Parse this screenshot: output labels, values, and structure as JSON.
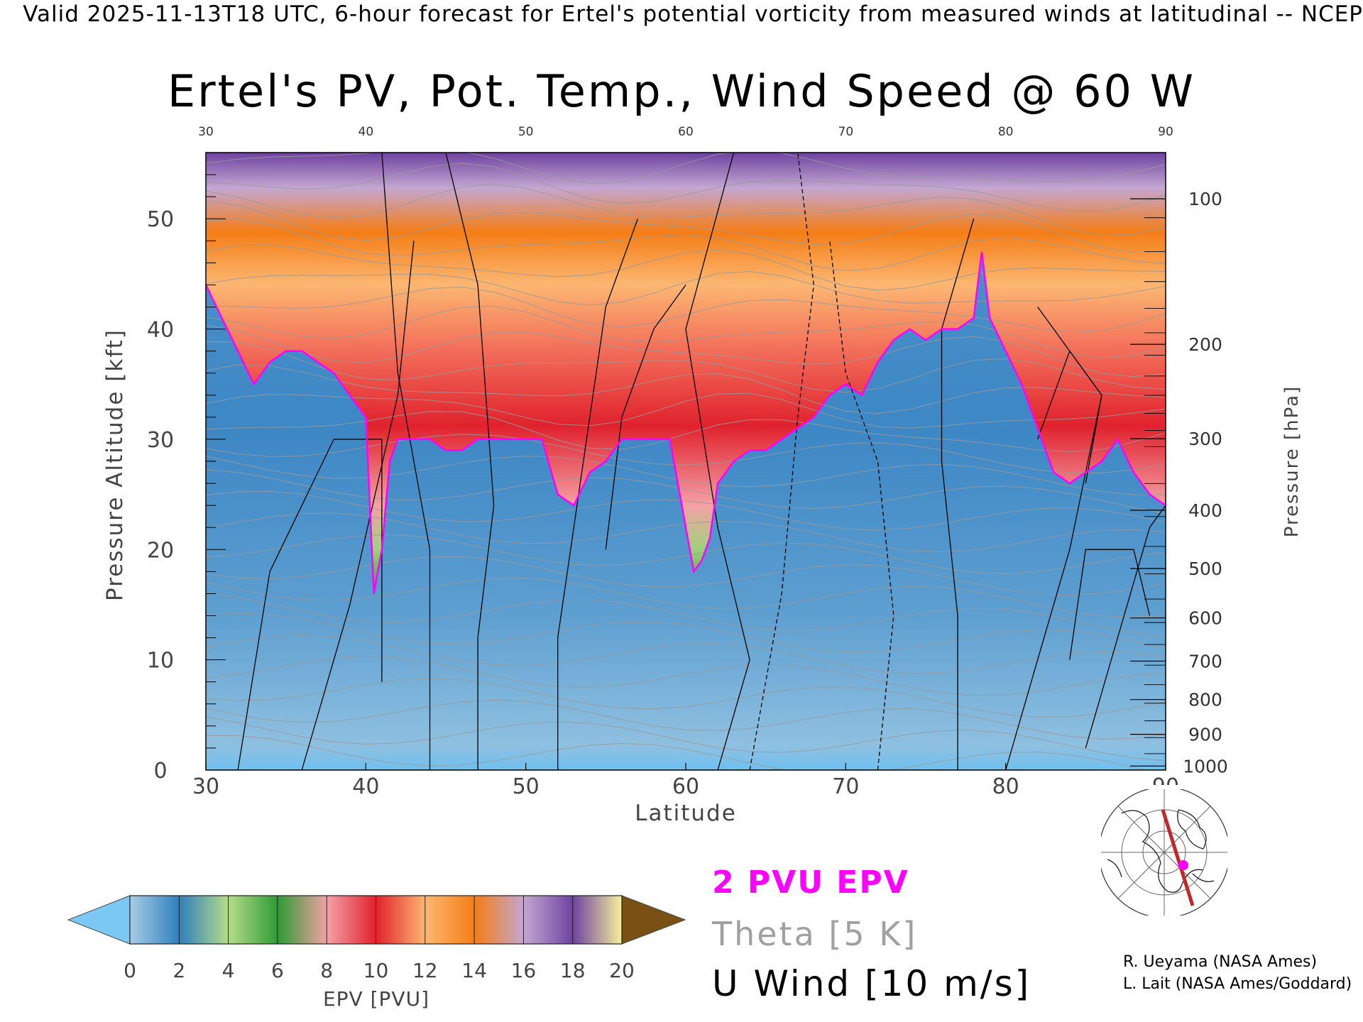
{
  "header": "Valid 2025-11-13T18 UTC, 6-hour forecast for Ertel's potential vorticity from measured winds at latitudinal -- NCEP",
  "chart_data": {
    "type": "heatmap",
    "title": "Ertel's PV, Pot. Temp., Wind Speed @ 60 W",
    "xlabel": "Latitude",
    "ylabel": "Pressure Altitude [kft]",
    "ylabel_right": "Pressure [hPa]",
    "xlim": [
      30,
      90
    ],
    "ylim": [
      0,
      56
    ],
    "x_ticks": [
      30,
      40,
      50,
      60,
      70,
      80,
      90
    ],
    "y_ticks": [
      0,
      10,
      20,
      30,
      40,
      50
    ],
    "pressure_ticks": [
      {
        "hPa": 100,
        "label": "100"
      },
      {
        "hPa": 200,
        "label": "200"
      },
      {
        "hPa": 300,
        "label": "300"
      },
      {
        "hPa": 400,
        "label": "400"
      },
      {
        "hPa": 500,
        "label": "500"
      },
      {
        "hPa": 600,
        "label": "600"
      },
      {
        "hPa": 700,
        "label": "700"
      },
      {
        "hPa": 800,
        "label": "800"
      },
      {
        "hPa": 900,
        "label": "900"
      },
      {
        "hPa": 1000,
        "label": "1000"
      }
    ],
    "tropopause_2pvu_kft": {
      "lat": [
        30,
        31,
        32,
        33,
        34,
        35,
        36,
        37,
        38,
        39,
        40,
        40.5,
        41,
        41.5,
        42,
        43,
        44,
        45,
        46,
        47,
        48,
        49,
        50,
        51,
        52,
        53,
        54,
        55,
        56,
        57,
        58,
        59,
        60,
        60.5,
        61,
        61.5,
        62,
        63,
        64,
        65,
        66,
        67,
        68,
        69,
        70,
        71,
        72,
        73,
        74,
        75,
        76,
        77,
        78,
        78.5,
        79,
        80,
        81,
        82,
        83,
        84,
        85,
        86,
        87,
        88,
        89,
        90
      ],
      "kft": [
        44,
        41,
        38,
        35,
        37,
        38,
        38,
        37,
        36,
        34,
        32,
        16,
        20,
        28,
        30,
        30,
        30,
        29,
        29,
        30,
        30,
        30,
        30,
        30,
        25,
        24,
        27,
        28,
        30,
        30,
        30,
        30,
        22,
        18,
        19,
        21,
        26,
        28,
        29,
        29,
        30,
        31,
        32,
        34,
        35,
        34,
        37,
        39,
        40,
        39,
        40,
        40,
        41,
        47,
        41,
        38,
        35,
        31,
        27,
        26,
        27,
        28,
        30,
        27,
        25,
        24
      ]
    },
    "epv_scale": {
      "boundaries": [
        0,
        2,
        4,
        6,
        8,
        10,
        12,
        14,
        16,
        18,
        20
      ],
      "colors": [
        "#a8cde6",
        "#2f7fbd",
        "#b6dc8a",
        "#2e9a35",
        "#f4a1a6",
        "#e0222e",
        "#fcb772",
        "#f47d16",
        "#c3a7d1",
        "#6e42a0",
        "#f6f09b",
        "#8b5a17"
      ],
      "under_color": "#7cc8f4",
      "over_color": "#7b5014",
      "label": "EPV [PVU]",
      "tick_labels": [
        "0",
        "2",
        "4",
        "6",
        "8",
        "10",
        "12",
        "14",
        "16",
        "18",
        "20"
      ]
    },
    "legend": [
      {
        "label": "2 PVU EPV",
        "color": "#ff00ff"
      },
      {
        "label": "Theta [5 K]",
        "color": "#a0a0a0"
      },
      {
        "label": "U Wind [10 m/s]",
        "color": "#000000"
      }
    ],
    "grid": false
  },
  "credits": [
    "R. Ueyama (NASA Ames)",
    "L. Lait (NASA Ames/Goddard)"
  ],
  "map_inset": {
    "icon": "polar-map-icon",
    "track_color": "#c0282a",
    "marker_color": "#ff00ff"
  }
}
